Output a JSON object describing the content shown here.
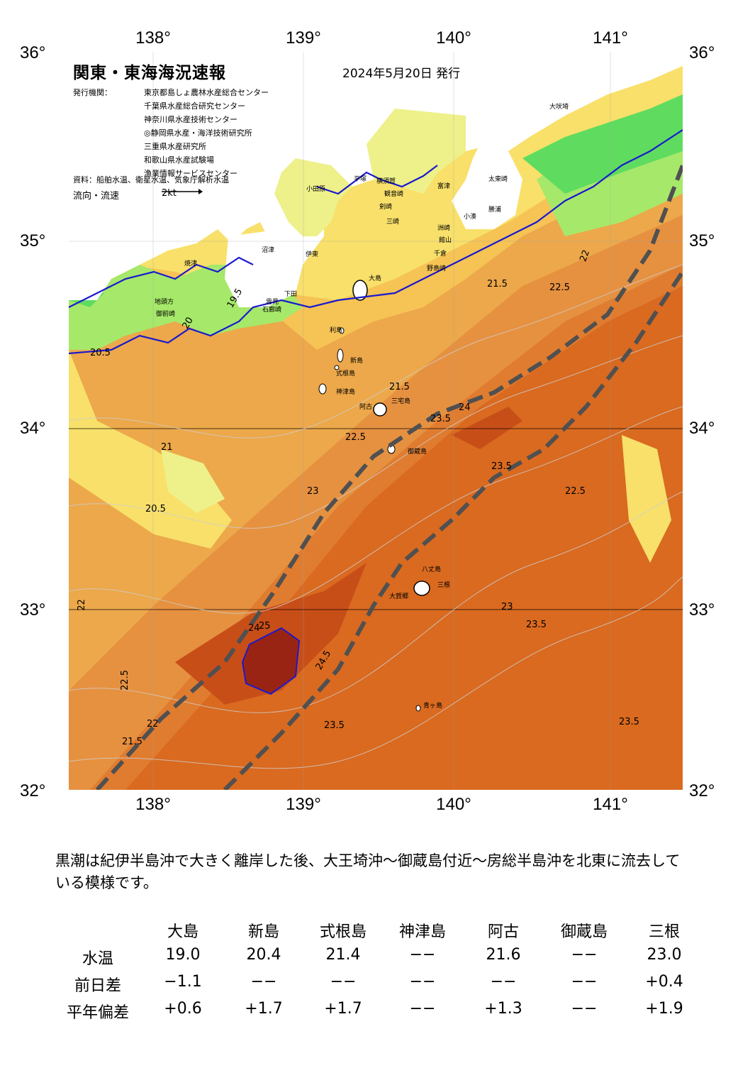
{
  "map": {
    "title": "関東・東海海況速報",
    "date": "2024年5月20日 発行",
    "publisher_label": "発行機関：",
    "publishers": [
      "東京都島しょ農林水産総合センター",
      "千葉県水産総合研究センター",
      "神奈川県水産技術センター",
      "◎静岡県水産・海洋技術研究所",
      "三重県水産研究所",
      "和歌山県水産試験場",
      "漁業情報サービスセンター"
    ],
    "source": "資料：船舶水温、衛星水温、気象庁解析水温",
    "flow_label": "流向・流速",
    "flow_scale": "2kt",
    "lon_ticks": [
      "138°",
      "139°",
      "140°",
      "141°"
    ],
    "lat_ticks": [
      "36°",
      "35°",
      "34°",
      "33°",
      "32°"
    ],
    "place_labels": [
      "大島",
      "利島",
      "新島",
      "式根島",
      "神津島",
      "阿古",
      "三宅島",
      "御蔵島",
      "八丈島",
      "三根",
      "大賀郷",
      "青ヶ島",
      "小田原",
      "平塚",
      "横須賀",
      "館山",
      "野島崎",
      "下田",
      "石廊崎",
      "伊東",
      "沼津",
      "焼津",
      "御前崎",
      "大吠埼",
      "太東崎",
      "勝浦",
      "千倉",
      "観音崎",
      "剣崎",
      "洲崎",
      "富津",
      "小湊",
      "地頭方",
      "雲見",
      "三崎"
    ],
    "contour_labels": [
      "19.5",
      "20",
      "20.5",
      "21",
      "21.5",
      "22",
      "22.5",
      "23",
      "23.5",
      "24",
      "24.5",
      "25"
    ],
    "colors": {
      "land": "#ffffff",
      "t_19": "#5fdc5f",
      "t_20": "#a6e86a",
      "t_20_5": "#eef08a",
      "t_21": "#f8e06a",
      "t_21_5": "#f6c355",
      "t_22": "#eca84a",
      "t_22_5": "#e69140",
      "t_23": "#e07c30",
      "t_23_5": "#d96a20",
      "t_24": "#c84e18",
      "t_25": "#9a2414",
      "kuroshio_axis": "#505050",
      "isotherm": "#1a1acc"
    }
  },
  "summary": "黒潮は紀伊半島沖で大きく離岸した後、大王埼沖〜御蔵島付近〜房総半島沖を北東に流去している模様です。",
  "table": {
    "columns": [
      "大島",
      "新島",
      "式根島",
      "神津島",
      "阿古",
      "御蔵島",
      "三根"
    ],
    "rows": [
      {
        "label": "水温",
        "values": [
          "19.0",
          "20.4",
          "21.4",
          "−−",
          "21.6",
          "−−",
          "23.0"
        ]
      },
      {
        "label": "前日差",
        "values": [
          "−1.1",
          "−−",
          "−−",
          "−−",
          "−−",
          "−−",
          "+0.4"
        ]
      },
      {
        "label": "平年偏差",
        "values": [
          "+0.6",
          "+1.7",
          "+1.7",
          "−−",
          "+1.3",
          "−−",
          "+1.9"
        ]
      }
    ]
  }
}
